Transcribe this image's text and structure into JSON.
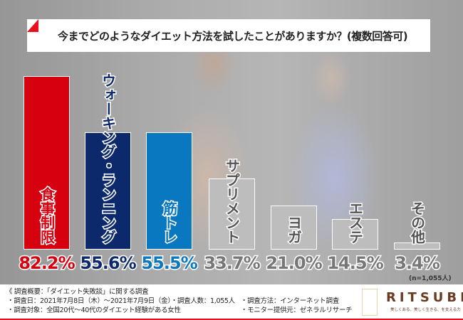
{
  "title": "今までどのようなダイエット方法を試したことがありますか？(複数回答可)",
  "chart_data": {
    "type": "bar",
    "title": "今までどのようなダイエット方法を試したことがありますか？(複数回答可)",
    "categories": [
      "食事制限",
      "ウォーキング・ランニング",
      "筋トレ",
      "サプリメント",
      "ヨガ",
      "エステ",
      "その他"
    ],
    "values": [
      82.2,
      55.6,
      55.5,
      33.7,
      21.0,
      14.5,
      3.4
    ],
    "value_labels": [
      "82.2%",
      "55.6%",
      "55.5%",
      "33.7%",
      "21.0%",
      "14.5%",
      "3.4%"
    ],
    "colors": [
      "#d7000f",
      "#0c2a6b",
      "#0a78c0",
      "#bdbdbd",
      "#bdbdbd",
      "#bdbdbd",
      "#bdbdbd"
    ],
    "label_colors": [
      "#d7000f",
      "#0c2a6b",
      "#0a78c0",
      "#555555",
      "#555555",
      "#555555",
      "#555555"
    ],
    "ylim": [
      0,
      100
    ],
    "note": "(n=1,055人)"
  },
  "footer": {
    "heading": "《 調査概要：「ダイエット失敗談」に関する調査",
    "lines": [
      "・調査日：2021年7月8日（木）〜2021年7月9日（金）・調査人数：1,055人",
      "・調査方法：インターネット調査",
      "・調査対象：全国20代〜40代のダイエット経験がある女性",
      "・モニター提供元：ゼネラルリサーチ"
    ]
  },
  "logo": {
    "name": "RITSUBI",
    "tagline": "美しくある、美しく生きる、を支える力"
  }
}
